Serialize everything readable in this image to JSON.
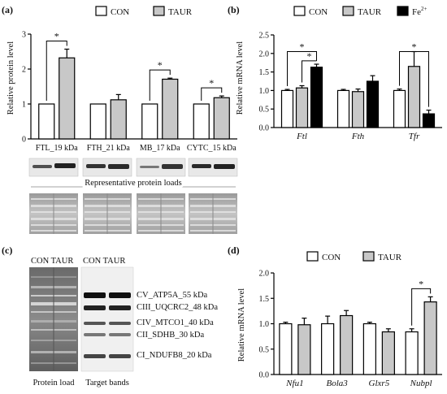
{
  "panels": {
    "a": {
      "label": "(a)",
      "chart_data": {
        "type": "bar",
        "ylabel": "Relative protein level",
        "ylim": [
          0,
          3
        ],
        "yticks": [
          "0",
          "1",
          "2",
          "3"
        ],
        "categories": [
          "FTL_19 kDa",
          "FTH_21 kDa",
          "MB_17 kDa",
          "CYTC_15 kDa"
        ],
        "legend": [
          "CON",
          "TAUR"
        ],
        "series": [
          {
            "name": "CON",
            "color": "#ffffff",
            "values": [
              1.0,
              1.0,
              1.0,
              1.0
            ],
            "err": [
              0,
              0,
              0,
              0
            ]
          },
          {
            "name": "TAUR",
            "color": "#c8c8c8",
            "values": [
              2.32,
              1.12,
              1.71,
              1.18
            ],
            "err": [
              0.25,
              0.15,
              0.03,
              0.05
            ]
          }
        ],
        "sig": [
          {
            "cat": 0,
            "label": "*"
          },
          {
            "cat": 2,
            "label": "*"
          },
          {
            "cat": 3,
            "label": "*"
          }
        ]
      },
      "blot_caption": "Representative protein loads"
    },
    "b": {
      "label": "(b)",
      "chart_data": {
        "type": "bar",
        "ylabel": "Relative mRNA level",
        "ylim": [
          0,
          2.5
        ],
        "yticks": [
          "0.0",
          "0.5",
          "1.0",
          "1.5",
          "2.0",
          "2.5"
        ],
        "categories": [
          "Ftl",
          "Fth",
          "Tfr"
        ],
        "legend": [
          "CON",
          "TAUR",
          "Fe"
        ],
        "legend_sup": "2+",
        "series": [
          {
            "name": "CON",
            "color": "#ffffff",
            "values": [
              1.0,
              1.0,
              1.0
            ],
            "err": [
              0.03,
              0.03,
              0.04
            ]
          },
          {
            "name": "TAUR",
            "color": "#c8c8c8",
            "values": [
              1.07,
              0.97,
              1.65
            ],
            "err": [
              0.06,
              0.07,
              0.4
            ]
          },
          {
            "name": "Fe2+",
            "color": "#000000",
            "values": [
              1.63,
              1.25,
              0.37
            ],
            "err": [
              0.08,
              0.15,
              0.1
            ]
          }
        ],
        "sig": [
          {
            "cat": 0,
            "from": 0,
            "to": 2,
            "level": 2.05,
            "label": "*"
          },
          {
            "cat": 0,
            "from": 1,
            "to": 2,
            "level": 1.8,
            "label": "*"
          },
          {
            "cat": 2,
            "from": 0,
            "to": 2,
            "level": 2.05,
            "label": "*"
          }
        ]
      }
    },
    "c": {
      "label": "(c)",
      "col_labels_left": "CON TAUR",
      "col_labels_right": "CON TAUR",
      "bands": [
        "CV_ATP5A_55 kDa",
        "CIII_UQCRC2_48 kDa",
        "CIV_MTCO1_40 kDa",
        "CII_SDHB_30 kDa",
        "CI_NDUFB8_20 kDa"
      ],
      "caption_left": "Protein load",
      "caption_right": "Target bands"
    },
    "d": {
      "label": "(d)",
      "chart_data": {
        "type": "bar",
        "ylabel": "Relative mRNA level",
        "ylim": [
          0,
          2.0
        ],
        "yticks": [
          "0.0",
          "0.5",
          "1.0",
          "1.5",
          "2.0"
        ],
        "categories": [
          "Nfu1",
          "Bola3",
          "Glxr5",
          "Nubpl"
        ],
        "legend": [
          "CON",
          "TAUR"
        ],
        "series": [
          {
            "name": "CON",
            "color": "#ffffff",
            "values": [
              1.0,
              1.0,
              1.0,
              0.84
            ],
            "err": [
              0.03,
              0.15,
              0.03,
              0.06
            ]
          },
          {
            "name": "TAUR",
            "color": "#c8c8c8",
            "values": [
              0.98,
              1.16,
              0.84,
              1.43
            ],
            "err": [
              0.13,
              0.1,
              0.06,
              0.1
            ]
          }
        ],
        "sig": [
          {
            "cat": 3,
            "label": "*"
          }
        ]
      }
    }
  }
}
